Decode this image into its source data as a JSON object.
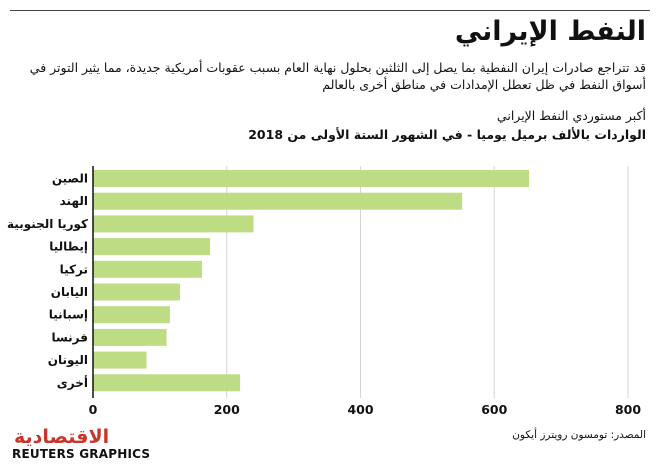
{
  "header": {
    "title": "النفط الإيراني",
    "subtitle": "قد تتراجع صادرات إيران النفطية بما يصل إلى الثلثين بحلول نهاية العام بسبب عقوبات أمريكية جديدة، مما يثير التوتر في أسواق النفط في ظل تعطل الإمدادات في مناطق أخرى بالعالم"
  },
  "chart_data": {
    "type": "bar",
    "orientation": "horizontal",
    "title": "أكبر مستوردي النفط الإيراني",
    "subtitle": "الواردات بالألف برميل يوميا - في الشهور الستة الأولى من 2018",
    "categories": [
      "الصين",
      "الهند",
      "كوريا الجنوبية",
      "إيطاليا",
      "تركيا",
      "اليابان",
      "إسبانيا",
      "فرنسا",
      "اليونان",
      "أخرى"
    ],
    "values": [
      652,
      552,
      240,
      175,
      163,
      130,
      115,
      110,
      80,
      220
    ],
    "xlim": [
      0,
      800
    ],
    "xticks": [
      0,
      200,
      400,
      600,
      800
    ],
    "grid": true,
    "bar_color": "#bddc84"
  },
  "footer": {
    "source": "المصدر: تومسون رويترز أيكون",
    "watermark": "الاقتصادية",
    "brand": "REUTERS GRAPHICS"
  }
}
